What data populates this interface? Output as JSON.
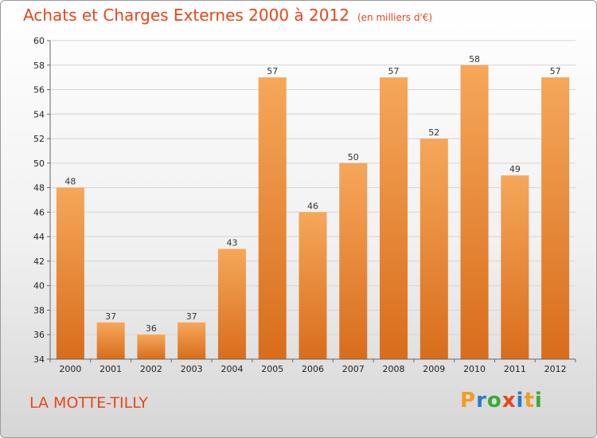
{
  "title": "Achats et Charges Externes 2000 à 2012",
  "unit": "(en milliers d'€)",
  "commune": "LA MOTTE-TILLY",
  "logo": {
    "letters": [
      "P",
      "r",
      "o",
      "x",
      "i",
      "t",
      "i"
    ],
    "colors": [
      "#f39c1e",
      "#2a7cc7",
      "#3aaa35",
      "#e8461a",
      "#2a7cc7",
      "#f39c1e",
      "#3aaa35"
    ]
  },
  "colors": {
    "bar": "#f0963f",
    "title": "#e8461a"
  },
  "chart_data": {
    "type": "bar",
    "categories": [
      "2000",
      "2001",
      "2002",
      "2003",
      "2004",
      "2005",
      "2006",
      "2007",
      "2008",
      "2009",
      "2010",
      "2011",
      "2012"
    ],
    "values": [
      48,
      37,
      36,
      37,
      43,
      57,
      46,
      50,
      57,
      52,
      58,
      49,
      57
    ],
    "ylim": [
      34,
      60
    ],
    "yticks": [
      34,
      36,
      38,
      40,
      42,
      44,
      46,
      48,
      50,
      52,
      54,
      56,
      58,
      60
    ],
    "grid": true,
    "legend": "none"
  }
}
